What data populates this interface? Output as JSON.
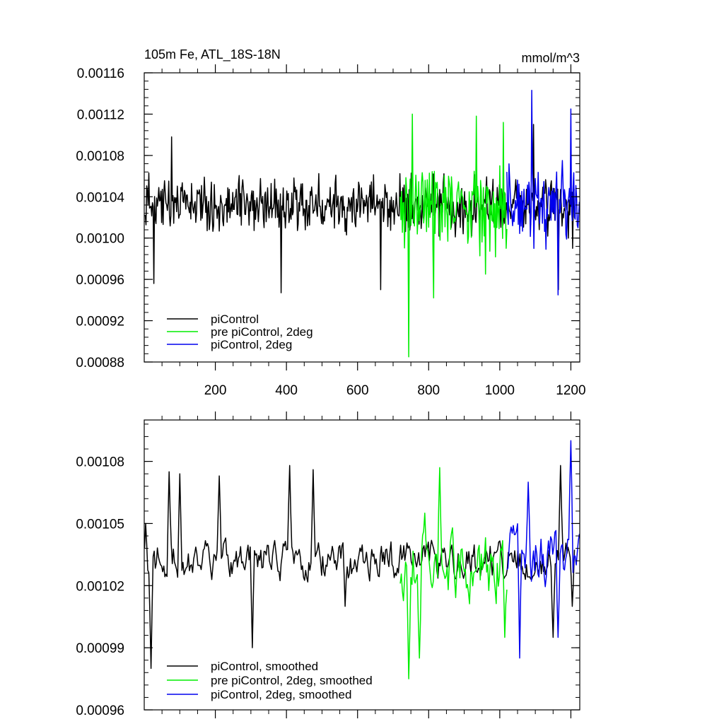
{
  "chart_data": [
    {
      "type": "line",
      "title": "105m Fe, ATL_18S-18N",
      "units_label": "mmol/m^3",
      "xlabel": "",
      "ylabel": "",
      "xlim": [
        0,
        1225
      ],
      "ylim": [
        0.00088,
        0.00116
      ],
      "x_ticks": [
        200,
        400,
        600,
        800,
        1000,
        1200
      ],
      "x_tick_labels": [
        "200",
        "400",
        "600",
        "800",
        "1000",
        "1200"
      ],
      "y_ticks": [
        0.00088,
        0.00092,
        0.00096,
        0.001,
        0.00104,
        0.00108,
        0.00112,
        0.00116
      ],
      "y_tick_labels": [
        "0.00088",
        "0.00092",
        "0.00096",
        "0.00100",
        "0.00104",
        "0.00108",
        "0.00112",
        "0.00116"
      ],
      "legend_placement": "bottom-left",
      "series": [
        {
          "name": "piControl",
          "color": "#000000",
          "x_start": 1,
          "x_end": 1210,
          "mean": 0.001032,
          "amplitude": 2.2e-05,
          "extremes": [
            [
              28,
              0.000956
            ],
            [
              78,
              0.001098
            ],
            [
              385,
              0.000947
            ],
            [
              665,
              0.00095
            ],
            [
              1095,
              0.00111
            ],
            [
              1165,
              0.00095
            ],
            [
              1205,
              0.00099
            ]
          ]
        },
        {
          "name": "pre piControl, 2deg",
          "color": "#00ee00",
          "x_start": 720,
          "x_end": 1020,
          "mean": 0.00103,
          "amplitude": 3.6e-05,
          "extremes": [
            [
              745,
              0.000885
            ],
            [
              755,
              0.00112
            ],
            [
              815,
              0.000942
            ],
            [
              935,
              0.001118
            ],
            [
              960,
              0.000965
            ],
            [
              1010,
              0.001112
            ]
          ]
        },
        {
          "name": "piControl, 2deg",
          "color": "#0000ee",
          "x_start": 1020,
          "x_end": 1225,
          "mean": 0.001032,
          "amplitude": 3.2e-05,
          "extremes": [
            [
              1090,
              0.001143
            ],
            [
              1165,
              0.000945
            ],
            [
              1200,
              0.001125
            ],
            [
              1220,
              0.00101
            ]
          ]
        }
      ]
    },
    {
      "type": "line",
      "title": "",
      "xlabel": "",
      "ylabel": "",
      "xlim": [
        0,
        1225
      ],
      "ylim": [
        0.00096,
        0.0011
      ],
      "x_ticks": [
        200,
        400,
        600,
        800,
        1000,
        1200
      ],
      "y_ticks": [
        0.00096,
        0.00099,
        0.00102,
        0.00105,
        0.00108
      ],
      "y_tick_labels": [
        "0.00096",
        "0.00099",
        "0.00102",
        "0.00105",
        "0.00108"
      ],
      "legend_placement": "bottom-left",
      "series": [
        {
          "name": "piControl, smoothed",
          "color": "#000000",
          "x_start": 1,
          "x_end": 1210,
          "mean": 0.001032,
          "amplitude": 1.2e-05,
          "extremes": [
            [
              5,
              0.00105
            ],
            [
              20,
              0.00098
            ],
            [
              70,
              0.001075
            ],
            [
              100,
              0.001074
            ],
            [
              210,
              0.001073
            ],
            [
              305,
              0.00099
            ],
            [
              410,
              0.001078
            ],
            [
              475,
              0.001076
            ],
            [
              565,
              0.00101
            ],
            [
              1150,
              0.000995
            ],
            [
              1170,
              0.001078
            ],
            [
              1205,
              0.00101
            ]
          ]
        },
        {
          "name": "pre piControl, 2deg, smoothed",
          "color": "#00ee00",
          "x_start": 720,
          "x_end": 1020,
          "mean": 0.00103,
          "amplitude": 2.2e-05,
          "extremes": [
            [
              745,
              0.000975
            ],
            [
              775,
              0.000985
            ],
            [
              790,
              0.001055
            ],
            [
              830,
              0.001077
            ],
            [
              1015,
              0.000995
            ]
          ]
        },
        {
          "name": "piControl, 2deg, smoothed",
          "color": "#0000ee",
          "x_start": 1020,
          "x_end": 1225,
          "mean": 0.001034,
          "amplitude": 1.8e-05,
          "extremes": [
            [
              1055,
              0.000985
            ],
            [
              1080,
              0.00107
            ],
            [
              1165,
              0.000995
            ],
            [
              1200,
              0.00109
            ],
            [
              1215,
              0.00103
            ],
            [
              1225,
              0.001045
            ]
          ]
        }
      ]
    }
  ]
}
